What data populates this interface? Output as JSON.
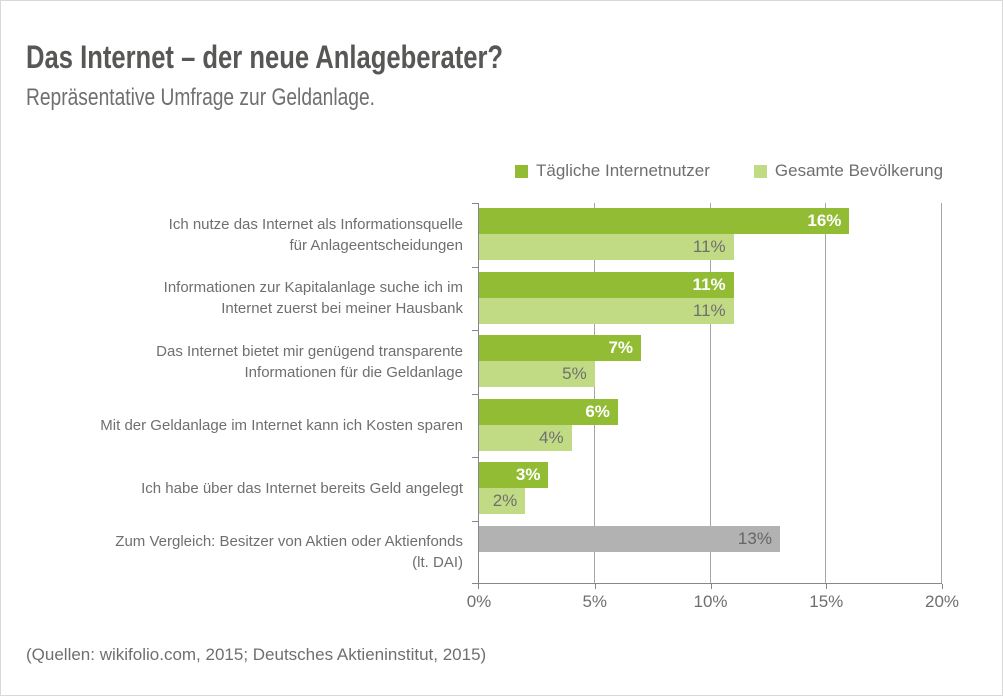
{
  "title": "Das Internet – der neue Anlageberater?",
  "subtitle": "Repräsentative Umfrage zur Geldanlage.",
  "legend": [
    {
      "label": "Tägliche Internetnutzer",
      "color": "#92bc33"
    },
    {
      "label": "Gesamte Bevölkerung",
      "color": "#c1db85"
    }
  ],
  "source": "(Quellen: wikifolio.com, 2015; Deutsches Aktieninstitut, 2015)",
  "chart_data": {
    "type": "bar",
    "orientation": "horizontal",
    "title": "Das Internet – der neue Anlageberater?",
    "subtitle": "Repräsentative Umfrage zur Geldanlage.",
    "categories": [
      "Ich nutze das Internet als Informationsquelle\nfür Anlageentscheidungen",
      "Informationen zur Kapitalanlage suche ich im\nInternet zuerst bei meiner Hausbank",
      "Das Internet bietet mir genügend transparente\nInformationen für die Geldanlage",
      "Mit der Geldanlage im Internet kann ich Kosten sparen",
      "Ich habe über das Internet bereits Geld angelegt",
      "Zum Vergleich: Besitzer von Aktien oder Aktienfonds\n(lt. DAI)"
    ],
    "series": [
      {
        "name": "Tägliche Internetnutzer",
        "color": "#92bc33",
        "label_color": "#ffffff",
        "label_bold": true,
        "values": [
          16,
          11,
          7,
          6,
          3,
          null
        ]
      },
      {
        "name": "Gesamte Bevölkerung",
        "color": "#c1db85",
        "label_color": "#706f6f",
        "label_bold": false,
        "values": [
          11,
          11,
          5,
          4,
          2,
          null
        ]
      },
      {
        "name": "Vergleich: Besitzer von Aktien oder Aktienfonds",
        "color": "#b2b2b2",
        "label_color": "#666666",
        "label_bold": false,
        "values": [
          null,
          null,
          null,
          null,
          null,
          13
        ]
      }
    ],
    "value_suffix": "%",
    "xlim": [
      0,
      20
    ],
    "x_ticks": [
      "0%",
      "5%",
      "10%",
      "15%",
      "20%"
    ],
    "grid": true,
    "legend_position": "top-right"
  }
}
